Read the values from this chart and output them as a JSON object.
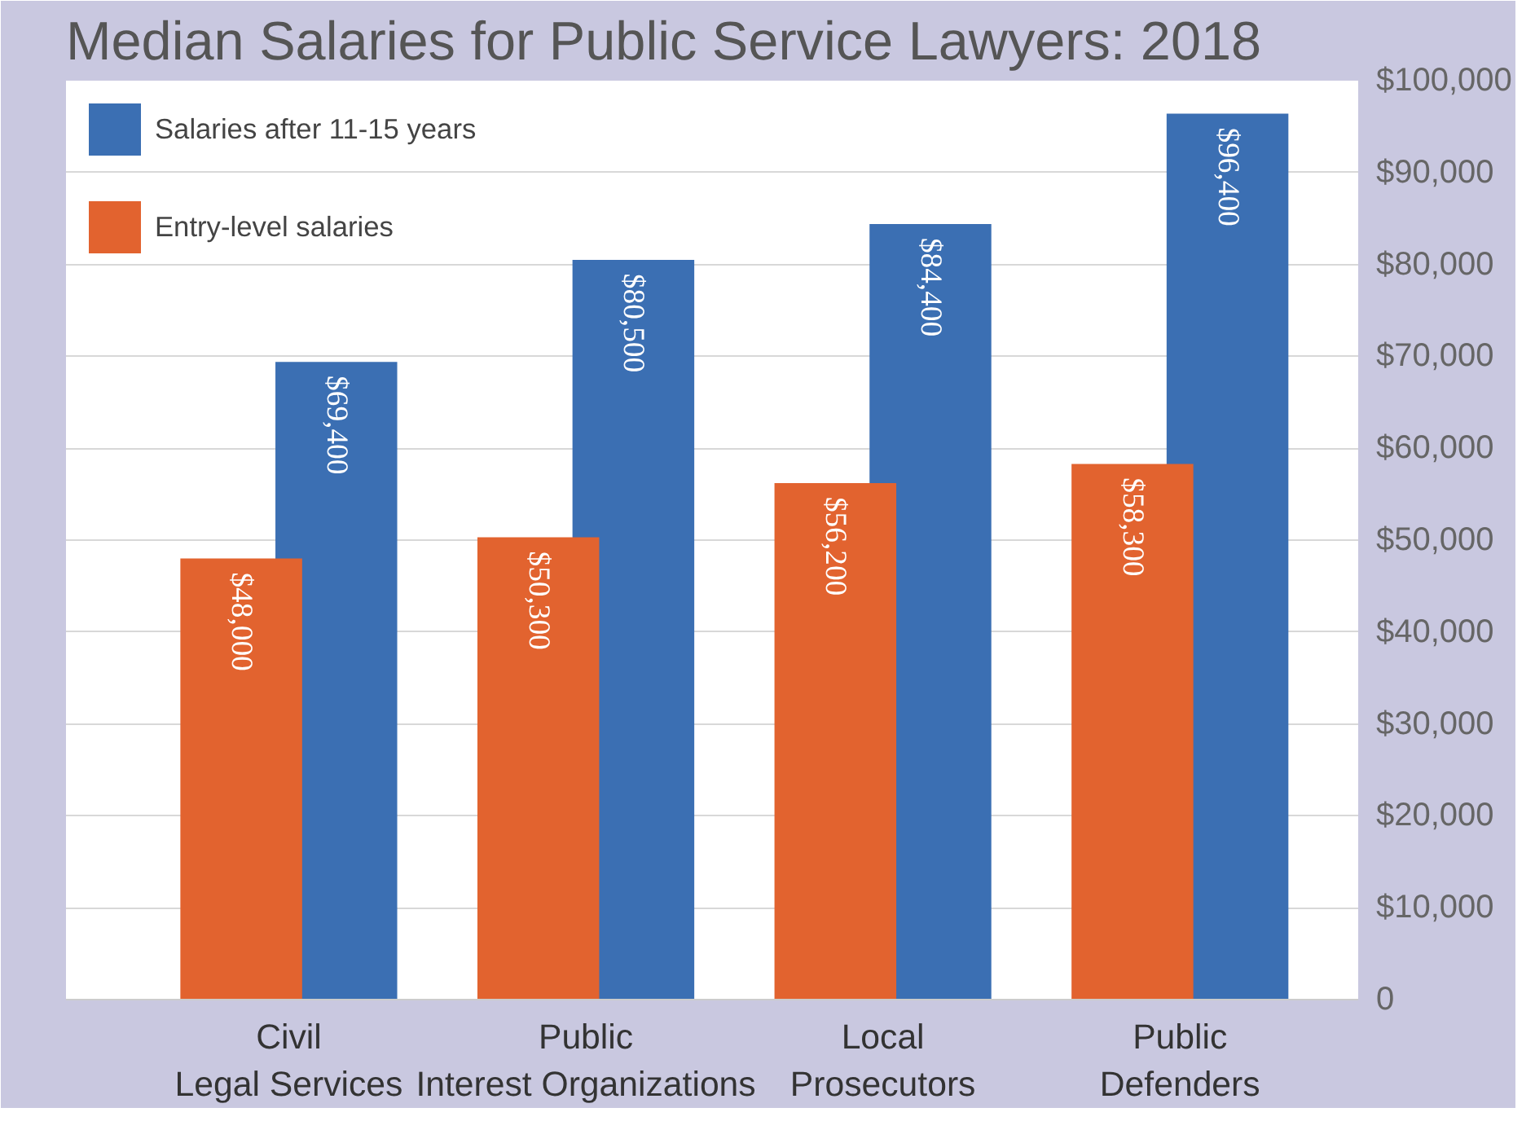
{
  "chart_data": {
    "type": "bar",
    "title": "Median Salaries for Public Service Lawyers: 2018",
    "categories": [
      "Civil Legal Services",
      "Public Interest Organizations",
      "Local Prosecutors",
      "Public Defenders"
    ],
    "series": [
      {
        "name": "Salaries after 11-15 years",
        "color": "#3b6fb3",
        "values": [
          69400,
          80500,
          84400,
          96400
        ],
        "value_labels": [
          "$69,400",
          "$80,500",
          "$84,400",
          "$96,400"
        ]
      },
      {
        "name": "Entry-level salaries",
        "color": "#e2632f",
        "values": [
          48000,
          50300,
          56200,
          58300
        ],
        "value_labels": [
          "$48,000",
          "$50,300",
          "$56,200",
          "$58,300"
        ]
      }
    ],
    "ylim": [
      0,
      100000
    ],
    "yticks": [
      0,
      {
        "value": 10000,
        "label": "$10,000"
      },
      {
        "value": 20000,
        "label": "$20,000"
      },
      {
        "value": 30000,
        "label": "$30,000"
      },
      {
        "value": 40000,
        "label": "$40,000"
      },
      {
        "value": 50000,
        "label": "$50,000"
      },
      {
        "value": 60000,
        "label": "$60,000"
      },
      {
        "value": 70000,
        "label": "$70,000"
      },
      {
        "value": 80000,
        "label": "$80,000"
      },
      {
        "value": 90000,
        "label": "$90,000"
      },
      {
        "value": 100000,
        "label": "$100,000"
      }
    ],
    "grid": "y",
    "legend": "top left"
  }
}
